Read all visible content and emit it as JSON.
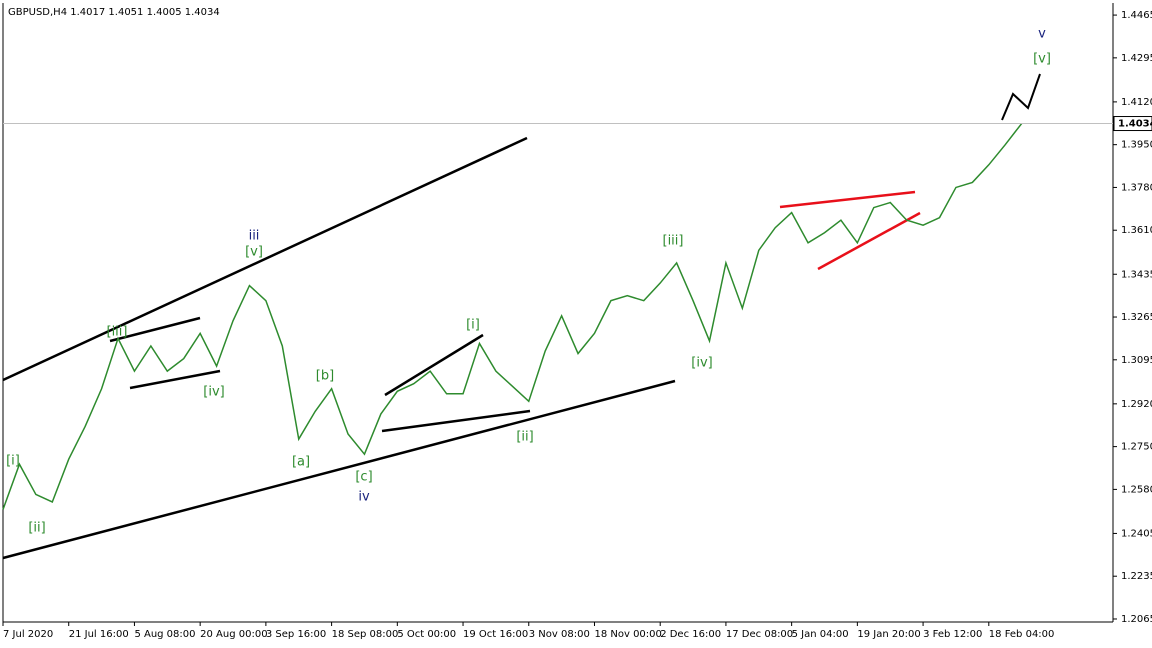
{
  "chart_data": {
    "type": "line",
    "title": "GBPUSD,H4  1.4017 1.4051 1.4005 1.4034",
    "last_price": 1.4034,
    "categories": [
      "7 Jul 2020",
      null,
      null,
      null,
      "21 Jul 16:00",
      null,
      null,
      null,
      "5 Aug 08:00",
      null,
      null,
      null,
      "20 Aug 00:00",
      null,
      null,
      null,
      "3 Sep 16:00",
      null,
      null,
      null,
      "18 Sep 08:00",
      null,
      null,
      null,
      "5 Oct 00:00",
      null,
      null,
      null,
      "19 Oct 16:00",
      null,
      null,
      null,
      "3 Nov 08:00",
      null,
      null,
      null,
      "18 Nov 00:00",
      null,
      null,
      null,
      "2 Dec 16:00",
      null,
      null,
      null,
      "17 Dec 08:00",
      null,
      null,
      null,
      "5 Jan 04:00",
      null,
      null,
      null,
      "19 Jan 20:00",
      null,
      null,
      null,
      "3 Feb 12:00",
      null,
      null,
      null,
      "18 Feb 04:00",
      null,
      null
    ],
    "series": [
      {
        "name": "GBPUSD",
        "color": "#2e8b2e",
        "values": [
          1.25,
          1.268,
          1.256,
          1.253,
          1.27,
          1.283,
          1.298,
          1.318,
          1.305,
          1.315,
          1.305,
          1.31,
          1.32,
          1.307,
          1.325,
          1.339,
          1.333,
          1.315,
          1.278,
          1.289,
          1.298,
          1.28,
          1.272,
          1.288,
          1.297,
          1.3,
          1.305,
          1.296,
          1.296,
          1.316,
          1.305,
          1.299,
          1.293,
          1.313,
          1.327,
          1.312,
          1.32,
          1.333,
          1.335,
          1.333,
          1.34,
          1.348,
          1.333,
          1.317,
          1.348,
          1.33,
          1.353,
          1.362,
          1.368,
          1.356,
          1.36,
          1.365,
          1.356,
          1.37,
          1.372,
          1.365,
          1.363,
          1.366,
          1.378,
          1.38,
          1.387,
          1.395,
          1.4034
        ]
      }
    ],
    "ylim": [
      1.2053,
      1.4513
    ],
    "yticks": [
      1.4465,
      1.4295,
      {
        "value": 1.412,
        "label": "1.4120"
      },
      {
        "value": 1.395,
        "label": "1.3950"
      },
      {
        "value": 1.378,
        "label": "1.3780"
      },
      {
        "value": 1.361,
        "label": "1.3610"
      },
      1.3435,
      1.3265,
      1.3095,
      {
        "value": 1.292,
        "label": "1.2920"
      },
      {
        "value": 1.275,
        "label": "1.2750"
      },
      {
        "value": 1.258,
        "label": "1.2580"
      },
      1.2405,
      1.2235,
      1.2065
    ],
    "annotations": [
      "[i]",
      "[ii]",
      "[iii]",
      "[iv]",
      "iii",
      "[v]",
      "[a]",
      "[b]",
      "[c]",
      "iv",
      "[i]",
      "[ii]",
      "[iii]",
      "[iv]",
      "v",
      "[v]"
    ]
  }
}
